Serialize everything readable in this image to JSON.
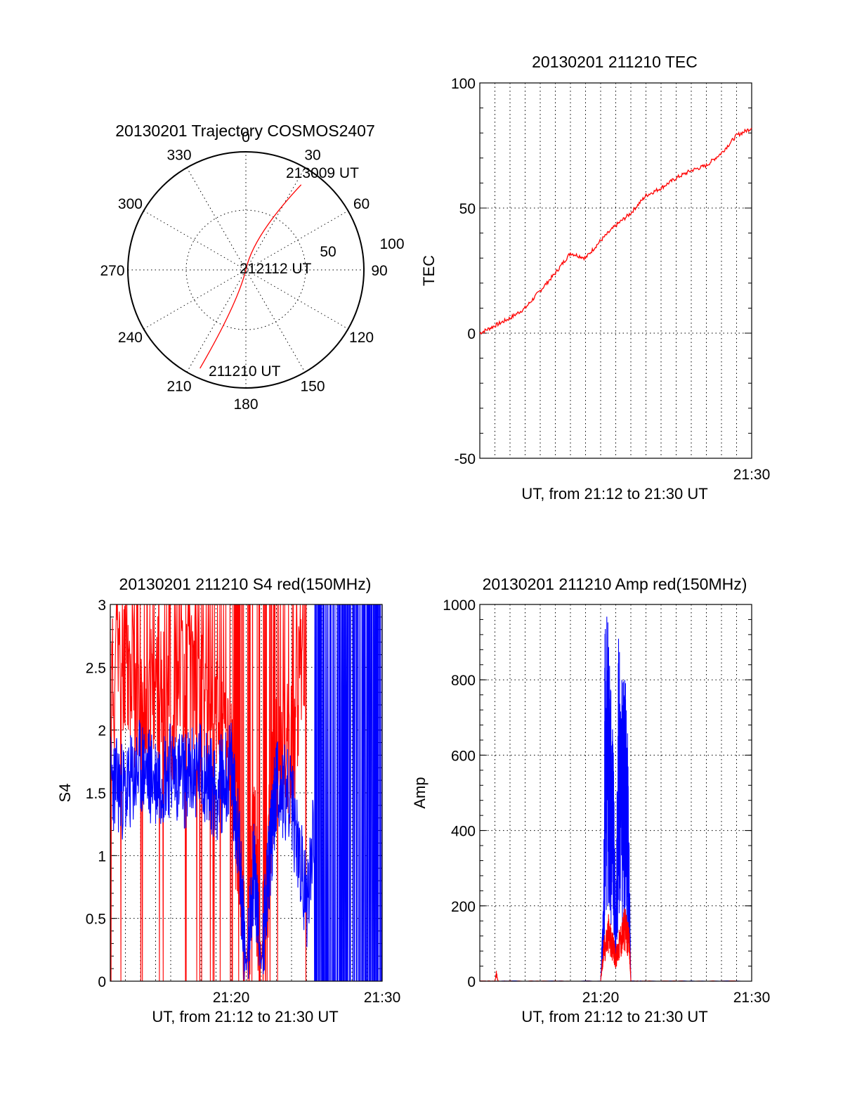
{
  "chart_data": [
    {
      "type": "polar-trajectory",
      "title": "20130201 Trajectory COSMOS2407",
      "azimuth_labels": [
        "0",
        "30",
        "60",
        "90",
        "120",
        "150",
        "180",
        "210",
        "240",
        "270",
        "300",
        "330"
      ],
      "radius_labels": [
        "50",
        "100"
      ],
      "rlim": [
        0,
        100
      ],
      "points": [
        {
          "label": "211210 UT",
          "az": 205,
          "zd": 92
        },
        {
          "label": "212112 UT",
          "az": 0,
          "zd": 0
        },
        {
          "label": "213009 UT",
          "az": 33,
          "zd": 86
        }
      ],
      "track_color": "#ff0000"
    },
    {
      "type": "line",
      "title": "20130201 211210 TEC",
      "xlabel": "UT, from 21:12 to 21:30 UT",
      "ylabel": "TEC",
      "xlim": [
        "21:12",
        "21:30"
      ],
      "ylim": [
        -50,
        100
      ],
      "y_ticks": [
        "-50",
        "0",
        "50",
        "100"
      ],
      "x_tick_labels": [
        "21:30"
      ],
      "grid": true,
      "series": [
        {
          "color": "#ff0000",
          "x": [
            "21:12",
            "21:13",
            "21:14",
            "21:15",
            "21:16",
            "21:17",
            "21:18",
            "21:19",
            "21:20",
            "21:21",
            "21:22",
            "21:23",
            "21:24",
            "21:25",
            "21:26",
            "21:27",
            "21:28",
            "21:29",
            "21:30"
          ],
          "values": [
            0,
            3,
            6,
            10,
            17,
            24,
            32,
            30,
            37,
            43,
            48,
            55,
            58,
            62,
            65,
            67,
            72,
            79,
            82
          ]
        }
      ]
    },
    {
      "type": "line",
      "title": "20130201 211210 S4 red(150MHz)",
      "xlabel": "UT, from 21:12 to 21:30 UT",
      "ylabel": "S4",
      "xlim": [
        "21:12",
        "21:30"
      ],
      "ylim": [
        0,
        3
      ],
      "y_ticks": [
        "0",
        "0.5",
        "1",
        "1.5",
        "2",
        "2.5",
        "3"
      ],
      "x_tick_labels": [
        "21:20",
        "21:30"
      ],
      "grid": true,
      "series": [
        {
          "color": "#ff0000",
          "x": [
            "21:12",
            "21:13",
            "21:14",
            "21:15",
            "21:16",
            "21:17",
            "21:18",
            "21:19",
            "21:20",
            "21:20:30",
            "21:21",
            "21:21:30",
            "21:22",
            "21:22:30",
            "21:23",
            "21:24",
            "21:25"
          ],
          "values": [
            2.3,
            2.6,
            2.1,
            2.4,
            2.0,
            2.5,
            2.2,
            2.0,
            1.8,
            1.0,
            0.1,
            1.2,
            0.15,
            1.0,
            1.9,
            1.8,
            2.8
          ]
        },
        {
          "color": "#0000ff",
          "x": [
            "21:12",
            "21:13",
            "21:14",
            "21:15",
            "21:16",
            "21:17",
            "21:18",
            "21:19",
            "21:20",
            "21:20:30",
            "21:21",
            "21:21:30",
            "21:22",
            "21:22:30",
            "21:23",
            "21:24",
            "21:25",
            "21:26",
            "21:27",
            "21:28",
            "21:29",
            "21:30"
          ],
          "values": [
            1.6,
            1.5,
            1.7,
            1.6,
            1.7,
            1.6,
            1.7,
            1.5,
            1.7,
            1.1,
            0.1,
            0.9,
            0.12,
            0.9,
            1.6,
            1.4,
            0.6,
            2.0,
            1.5,
            2.0,
            1.5,
            2.3
          ]
        }
      ]
    },
    {
      "type": "line",
      "title": "20130201 211210 Amp red(150MHz)",
      "xlabel": "UT, from 21:12 to 21:30 UT",
      "ylabel": "Amp",
      "xlim": [
        "21:12",
        "21:30"
      ],
      "ylim": [
        0,
        1000
      ],
      "y_ticks": [
        "0",
        "200",
        "400",
        "600",
        "800",
        "1000"
      ],
      "x_tick_labels": [
        "21:20",
        "21:30"
      ],
      "grid": true,
      "series": [
        {
          "color": "#ff0000",
          "x": [
            "21:12",
            "21:13",
            "21:13:06",
            "21:13:12",
            "21:14",
            "21:20",
            "21:20:12",
            "21:20:30",
            "21:20:48",
            "21:21",
            "21:21:18",
            "21:21:36",
            "21:21:54",
            "21:22",
            "21:23",
            "21:30"
          ],
          "values": [
            0,
            0,
            20,
            0,
            0,
            0,
            80,
            130,
            90,
            60,
            110,
            140,
            100,
            0,
            0,
            0
          ]
        },
        {
          "color": "#0000ff",
          "x": [
            "21:12",
            "21:20",
            "21:20:12",
            "21:20:18",
            "21:20:36",
            "21:20:48",
            "21:21",
            "21:21:12",
            "21:21:24",
            "21:21:36",
            "21:21:48",
            "21:22",
            "21:23",
            "21:30"
          ],
          "values": [
            0,
            0,
            150,
            620,
            560,
            420,
            120,
            580,
            480,
            490,
            380,
            0,
            0,
            0
          ]
        }
      ]
    }
  ]
}
